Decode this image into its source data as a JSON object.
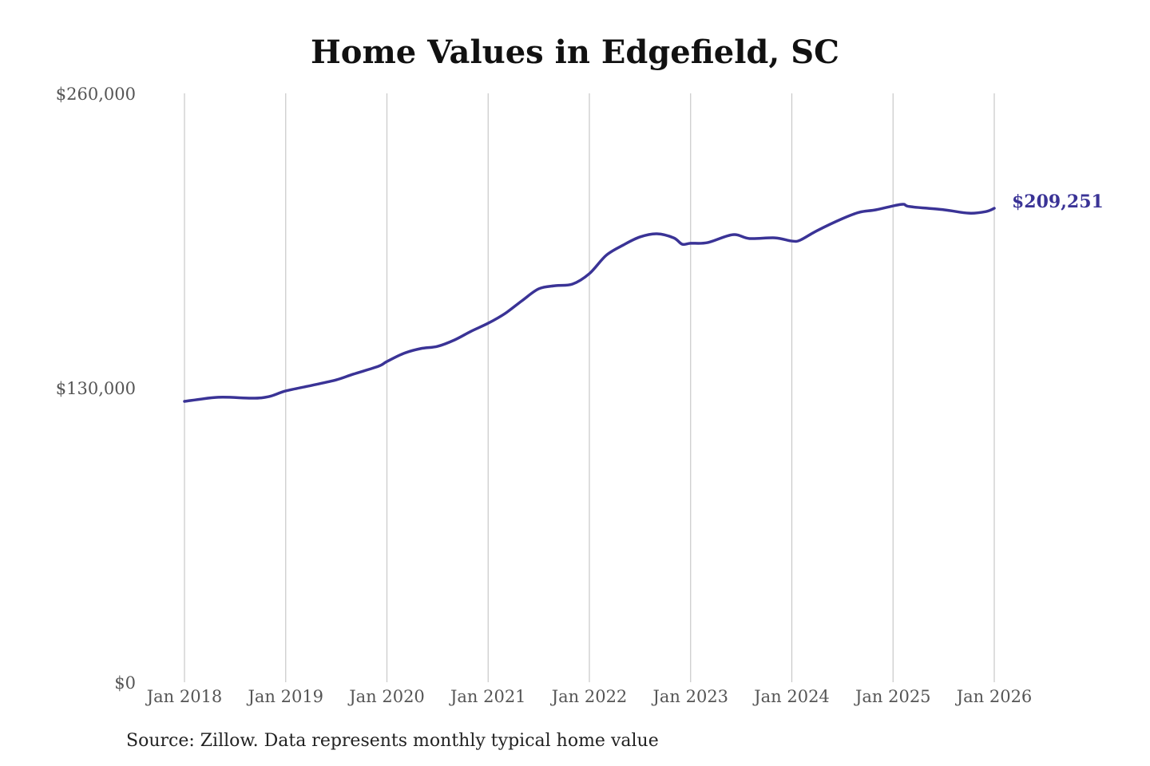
{
  "chart_data": {
    "type": "line",
    "title": "Home Values in Edgefield, SC",
    "source": "Source: Zillow. Data represents monthly typical home value",
    "xlabel": "",
    "ylabel": "",
    "ylim": [
      0,
      260000
    ],
    "xlim": [
      "2018-01",
      "2026-01"
    ],
    "yticks": [
      0,
      130000,
      260000
    ],
    "ytick_labels": [
      "$0",
      "$130,000",
      "$260,000"
    ],
    "xticks": [
      "2018-01",
      "2019-01",
      "2020-01",
      "2021-01",
      "2022-01",
      "2023-01",
      "2024-01",
      "2025-01",
      "2026-01"
    ],
    "xtick_labels": [
      "Jan 2018",
      "Jan 2019",
      "Jan 2020",
      "Jan 2021",
      "Jan 2022",
      "Jan 2023",
      "Jan 2024",
      "Jan 2025",
      "Jan 2026"
    ],
    "grid": "vertical",
    "line_color": "#3a3396",
    "end_label": "$209,251",
    "series": [
      {
        "points": [
          [
            "2018-01",
            124000
          ],
          [
            "2018-05",
            125800
          ],
          [
            "2018-09",
            125400
          ],
          [
            "2018-11",
            126100
          ],
          [
            "2019-01",
            128600
          ],
          [
            "2019-04",
            131000
          ],
          [
            "2019-07",
            133500
          ],
          [
            "2019-09",
            136000
          ],
          [
            "2019-12",
            139500
          ],
          [
            "2020-01",
            141600
          ],
          [
            "2020-03",
            145200
          ],
          [
            "2020-05",
            147300
          ],
          [
            "2020-07",
            148300
          ],
          [
            "2020-09",
            151100
          ],
          [
            "2020-11",
            155000
          ],
          [
            "2021-01",
            158500
          ],
          [
            "2021-03",
            162800
          ],
          [
            "2021-05",
            168400
          ],
          [
            "2021-07",
            173700
          ],
          [
            "2021-09",
            175100
          ],
          [
            "2021-11",
            175800
          ],
          [
            "2022-01",
            180400
          ],
          [
            "2022-03",
            188500
          ],
          [
            "2022-05",
            193000
          ],
          [
            "2022-07",
            196600
          ],
          [
            "2022-09",
            198000
          ],
          [
            "2022-11",
            196200
          ],
          [
            "2022-12",
            193400
          ],
          [
            "2023-01",
            193800
          ],
          [
            "2023-03",
            194100
          ],
          [
            "2023-06",
            197600
          ],
          [
            "2023-08",
            195900
          ],
          [
            "2023-11",
            196200
          ],
          [
            "2024-01",
            194800
          ],
          [
            "2024-02",
            195200
          ],
          [
            "2024-04",
            199400
          ],
          [
            "2024-07",
            204700
          ],
          [
            "2024-09",
            207500
          ],
          [
            "2024-11",
            208600
          ],
          [
            "2025-02",
            211000
          ],
          [
            "2025-03",
            210000
          ],
          [
            "2025-07",
            208600
          ],
          [
            "2025-10",
            207100
          ],
          [
            "2025-12",
            207800
          ],
          [
            "2026-01",
            209251
          ]
        ]
      }
    ]
  }
}
